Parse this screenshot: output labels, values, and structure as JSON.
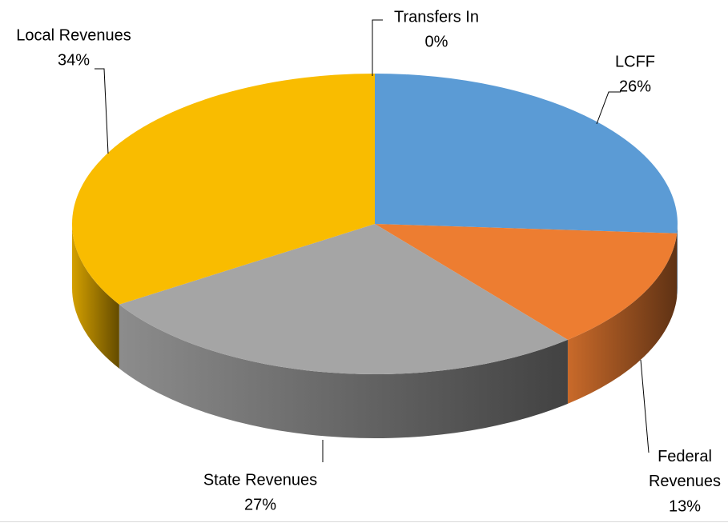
{
  "chart_data": {
    "type": "pie3d",
    "categories": [
      "LCFF",
      "Federal Revenues",
      "State Revenues",
      "Local Revenues",
      "Transfers In"
    ],
    "values": [
      26,
      13,
      27,
      34,
      0
    ],
    "value_labels": [
      "26%",
      "13%",
      "27%",
      "34%",
      "0%"
    ],
    "colors": [
      "#5b9bd5",
      "#ed7d31",
      "#a5a5a5",
      "#f9bc00",
      "#4472c4"
    ]
  }
}
